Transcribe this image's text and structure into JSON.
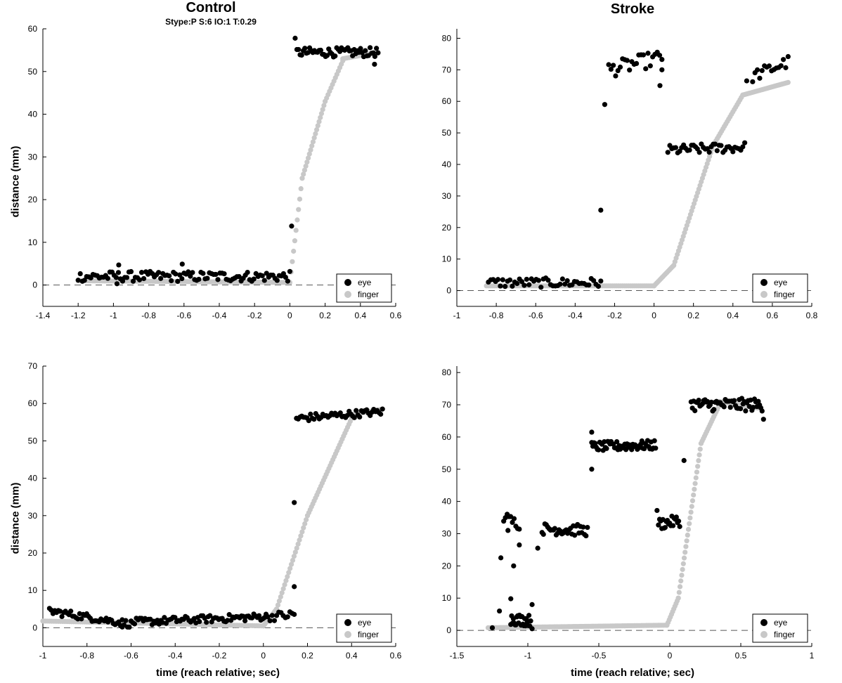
{
  "titles": {
    "control": "Control",
    "stroke": "Stroke",
    "subtitle": "Stype:P S:6 IO:1 T:0.29"
  },
  "axis_labels": {
    "y_top": "distance (mm)",
    "y_bottom": "distance (mm)",
    "x_left": "time (reach relative; sec)",
    "x_right": "time (reach relative; sec)"
  },
  "legend": {
    "eye": "eye",
    "finger": "finger"
  },
  "colors": {
    "eye": "#000000",
    "finger": "#c8c8c8",
    "zero_line": "#555555"
  },
  "chart_data": [
    {
      "id": "control-top",
      "type": "scatter",
      "title": "Control",
      "subtitle": "Stype:P S:6 IO:1 T:0.29",
      "xlabel": "",
      "ylabel": "distance (mm)",
      "xlim": [
        -1.4,
        0.6
      ],
      "ylim": [
        -5,
        60
      ],
      "xticks": [
        -1.4,
        -1.2,
        -1,
        -0.8,
        -0.6,
        -0.4,
        -0.2,
        0,
        0.2,
        0.4,
        0.6
      ],
      "xtick_labels": [
        "-1.4",
        "-1.2",
        "-1",
        "-0.8",
        "-0.6",
        "-0.4",
        "-0.2",
        "0",
        "0.2",
        "0.4",
        "0.6"
      ],
      "yticks": [
        0,
        10,
        20,
        30,
        40,
        50,
        60
      ],
      "ytick_labels": [
        "0",
        "10",
        "20",
        "30",
        "40",
        "50",
        "60"
      ],
      "legend_position": "bottom-right",
      "series": [
        {
          "name": "eye",
          "segments": [
            {
              "x": [
                -1.2,
                0.0
              ],
              "y": [
                2.0,
                2.0
              ],
              "step": 0.012,
              "jitter": 1.2
            },
            {
              "x": [
                0.04,
                0.5
              ],
              "y": [
                54.5,
                54.5
              ],
              "step": 0.009,
              "jitter": 1.1
            }
          ],
          "points": [
            [
              0.01,
              13.8
            ],
            [
              0.03,
              57.8
            ],
            [
              -0.97,
              4.7
            ],
            [
              -0.98,
              0.3
            ],
            [
              -0.61,
              4.9
            ],
            [
              0.48,
              51.7
            ]
          ]
        },
        {
          "name": "finger",
          "segments": [
            {
              "x": [
                -1.2,
                0.0
              ],
              "y": [
                1.0,
                0.6
              ],
              "step": 0.01,
              "jitter": 0
            },
            {
              "x": [
                0.0,
                0.07
              ],
              "y": [
                0.6,
                25.0
              ],
              "step": 0.007,
              "jitter": 0
            },
            {
              "x": [
                0.07,
                0.2
              ],
              "y": [
                25.0,
                43.0
              ],
              "step": 0.007,
              "jitter": 0
            },
            {
              "x": [
                0.2,
                0.3
              ],
              "y": [
                43.0,
                52.5
              ],
              "step": 0.008,
              "jitter": 0
            },
            {
              "x": [
                0.3,
                0.5
              ],
              "y": [
                53.0,
                54.5
              ],
              "step": 0.008,
              "jitter": 0
            }
          ]
        }
      ]
    },
    {
      "id": "stroke-top",
      "type": "scatter",
      "title": "Stroke",
      "xlabel": "",
      "ylabel": "",
      "xlim": [
        -1,
        0.8
      ],
      "ylim": [
        -5,
        83
      ],
      "xticks": [
        -1,
        -0.8,
        -0.6,
        -0.4,
        -0.2,
        0,
        0.2,
        0.4,
        0.6,
        0.8
      ],
      "xtick_labels": [
        "-1",
        "-0.8",
        "-0.6",
        "-0.4",
        "-0.2",
        "0",
        "0.2",
        "0.4",
        "0.6",
        "0.8"
      ],
      "yticks": [
        0,
        10,
        20,
        30,
        40,
        50,
        60,
        70,
        80
      ],
      "ytick_labels": [
        "0",
        "10",
        "20",
        "30",
        "40",
        "50",
        "60",
        "70",
        "80"
      ],
      "legend_position": "bottom-right",
      "series": [
        {
          "name": "eye",
          "segments": [
            {
              "x": [
                -0.84,
                -0.27
              ],
              "y": [
                2.5,
                2.5
              ],
              "step": 0.012,
              "jitter": 1.5
            },
            {
              "x": [
                -0.23,
                0.04
              ],
              "y": [
                70.0,
                74.0
              ],
              "step": 0.012,
              "jitter": 2.5
            },
            {
              "x": [
                0.07,
                0.46
              ],
              "y": [
                44.5,
                45.5
              ],
              "step": 0.01,
              "jitter": 1.6
            },
            {
              "x": [
                0.5,
                0.68
              ],
              "y": [
                68.0,
                72.5
              ],
              "step": 0.012,
              "jitter": 2.0
            }
          ],
          "points": [
            [
              -0.27,
              25.5
            ],
            [
              -0.25,
              59.0
            ],
            [
              0.04,
              70.0
            ],
            [
              0.03,
              65.0
            ],
            [
              0.47,
              66.5
            ]
          ]
        },
        {
          "name": "finger",
          "segments": [
            {
              "x": [
                -0.85,
                0.0
              ],
              "y": [
                1.5,
                1.5
              ],
              "step": 0.01,
              "jitter": 0
            },
            {
              "x": [
                0.0,
                0.1
              ],
              "y": [
                1.5,
                8.0
              ],
              "step": 0.007,
              "jitter": 0
            },
            {
              "x": [
                0.1,
                0.3
              ],
              "y": [
                8.0,
                46.0
              ],
              "step": 0.006,
              "jitter": 0
            },
            {
              "x": [
                0.3,
                0.45
              ],
              "y": [
                46.0,
                62.0
              ],
              "step": 0.007,
              "jitter": 0
            },
            {
              "x": [
                0.45,
                0.68
              ],
              "y": [
                62.0,
                66.0
              ],
              "step": 0.008,
              "jitter": 0
            }
          ]
        }
      ]
    },
    {
      "id": "control-bottom",
      "type": "scatter",
      "xlabel": "time (reach relative; sec)",
      "ylabel": "distance (mm)",
      "xlim": [
        -1,
        0.6
      ],
      "ylim": [
        -5,
        70
      ],
      "xticks": [
        -1,
        -0.8,
        -0.6,
        -0.4,
        -0.2,
        0,
        0.2,
        0.4,
        0.6
      ],
      "xtick_labels": [
        "-1",
        "-0.8",
        "-0.6",
        "-0.4",
        "-0.2",
        "0",
        "0.2",
        "0.4",
        "0.6"
      ],
      "yticks": [
        0,
        10,
        20,
        30,
        40,
        50,
        60,
        70
      ],
      "ytick_labels": [
        "0",
        "10",
        "20",
        "30",
        "40",
        "50",
        "60",
        "70"
      ],
      "legend_position": "bottom-right",
      "series": [
        {
          "name": "eye",
          "segments": [
            {
              "x": [
                -0.97,
                -0.6
              ],
              "y": [
                4.5,
                1.0
              ],
              "step": 0.008,
              "jitter": 1.0
            },
            {
              "x": [
                -0.6,
                0.02
              ],
              "y": [
                1.5,
                3.0
              ],
              "step": 0.008,
              "jitter": 1.0
            },
            {
              "x": [
                0.03,
                0.14
              ],
              "y": [
                3.0,
                3.5
              ],
              "step": 0.01,
              "jitter": 1.2
            },
            {
              "x": [
                0.15,
                0.54
              ],
              "y": [
                56.0,
                57.8
              ],
              "step": 0.008,
              "jitter": 1.0
            }
          ],
          "points": [
            [
              0.14,
              33.5
            ],
            [
              0.14,
              11.0
            ],
            [
              -0.64,
              0.2
            ]
          ]
        },
        {
          "name": "finger",
          "segments": [
            {
              "x": [
                -1.0,
                0.0
              ],
              "y": [
                1.8,
                0.5
              ],
              "step": 0.01,
              "jitter": 0
            },
            {
              "x": [
                0.0,
                0.06
              ],
              "y": [
                0.5,
                5.0
              ],
              "step": 0.006,
              "jitter": 0
            },
            {
              "x": [
                0.06,
                0.2
              ],
              "y": [
                5.0,
                30.0
              ],
              "step": 0.006,
              "jitter": 0
            },
            {
              "x": [
                0.2,
                0.4
              ],
              "y": [
                30.0,
                56.0
              ],
              "step": 0.006,
              "jitter": 0
            },
            {
              "x": [
                0.4,
                0.54
              ],
              "y": [
                57.0,
                58.5
              ],
              "step": 0.008,
              "jitter": 0
            }
          ]
        }
      ]
    },
    {
      "id": "stroke-bottom",
      "type": "scatter",
      "xlabel": "time (reach relative; sec)",
      "ylabel": "",
      "xlim": [
        -1.5,
        1
      ],
      "ylim": [
        -5,
        82
      ],
      "xticks": [
        -1.5,
        -1,
        -0.5,
        0,
        0.5,
        1
      ],
      "xtick_labels": [
        "-1.5",
        "-1",
        "-0.5",
        "0",
        "0.5",
        "1"
      ],
      "yticks": [
        0,
        10,
        20,
        30,
        40,
        50,
        60,
        70,
        80
      ],
      "ytick_labels": [
        "0",
        "10",
        "20",
        "30",
        "40",
        "50",
        "60",
        "70",
        "80"
      ],
      "legend_position": "bottom-right",
      "series": [
        {
          "name": "eye",
          "segments": [
            {
              "x": [
                -1.17,
                -1.06
              ],
              "y": [
                35.0,
                33.0
              ],
              "step": 0.012,
              "jitter": 1.8
            },
            {
              "x": [
                -1.12,
                -0.98
              ],
              "y": [
                3.5,
                3.0
              ],
              "step": 0.006,
              "jitter": 1.8
            },
            {
              "x": [
                -0.9,
                -0.58
              ],
              "y": [
                31.5,
                31.0
              ],
              "step": 0.01,
              "jitter": 1.8
            },
            {
              "x": [
                -0.55,
                -0.1
              ],
              "y": [
                57.0,
                57.5
              ],
              "step": 0.008,
              "jitter": 1.5
            },
            {
              "x": [
                -0.08,
                0.07
              ],
              "y": [
                33.0,
                34.0
              ],
              "step": 0.008,
              "jitter": 1.8
            },
            {
              "x": [
                0.15,
                0.65
              ],
              "y": [
                70.0,
                70.0
              ],
              "step": 0.009,
              "jitter": 2.0
            }
          ],
          "points": [
            [
              -1.25,
              0.8
            ],
            [
              -1.2,
              6.0
            ],
            [
              -1.19,
              22.5
            ],
            [
              -1.14,
              31.0
            ],
            [
              -1.1,
              20.0
            ],
            [
              -1.06,
              26.5
            ],
            [
              -1.12,
              9.8
            ],
            [
              -0.97,
              0.5
            ],
            [
              -0.97,
              8.0
            ],
            [
              -0.93,
              25.5
            ],
            [
              -0.55,
              50.0
            ],
            [
              -0.55,
              61.5
            ],
            [
              -0.09,
              37.2
            ],
            [
              0.1,
              52.7
            ],
            [
              0.66,
              65.5
            ]
          ]
        },
        {
          "name": "finger",
          "segments": [
            {
              "x": [
                -1.28,
                -0.02
              ],
              "y": [
                0.8,
                1.6
              ],
              "step": 0.012,
              "jitter": 0
            },
            {
              "x": [
                -0.02,
                0.06
              ],
              "y": [
                1.6,
                10.0
              ],
              "step": 0.008,
              "jitter": 0
            },
            {
              "x": [
                0.06,
                0.22
              ],
              "y": [
                10.0,
                58.0
              ],
              "step": 0.006,
              "jitter": 0
            },
            {
              "x": [
                0.22,
                0.35
              ],
              "y": [
                58.0,
                70.0
              ],
              "step": 0.008,
              "jitter": 0
            },
            {
              "x": [
                0.35,
                0.62
              ],
              "y": [
                71.0,
                69.0
              ],
              "step": 0.01,
              "jitter": 0
            }
          ]
        }
      ]
    }
  ]
}
